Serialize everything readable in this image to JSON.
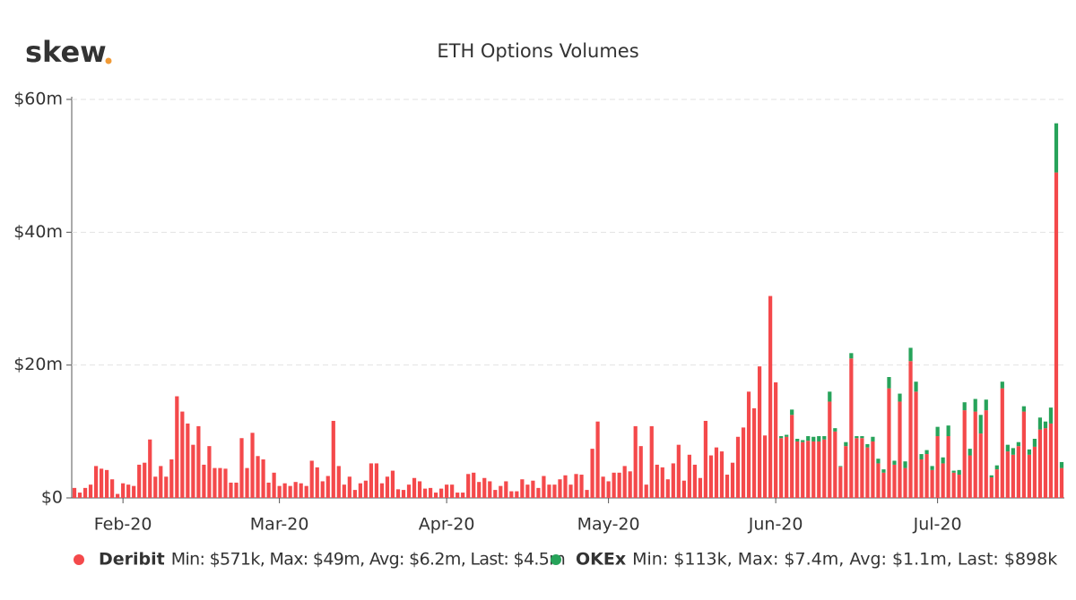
{
  "logo": "skew",
  "chart_data": {
    "type": "bar",
    "stacked": true,
    "title": "ETH Options Volumes",
    "categories": [
      null,
      null,
      null,
      null,
      null,
      null,
      null,
      null,
      null,
      "Feb-20",
      null,
      null,
      null,
      null,
      null,
      null,
      null,
      null,
      null,
      null,
      null,
      null,
      null,
      null,
      null,
      null,
      null,
      null,
      null,
      null,
      null,
      null,
      null,
      null,
      null,
      null,
      null,
      null,
      "Mar-20",
      null,
      null,
      null,
      null,
      null,
      null,
      null,
      null,
      null,
      null,
      null,
      null,
      null,
      null,
      null,
      null,
      null,
      null,
      null,
      null,
      null,
      null,
      null,
      null,
      null,
      null,
      null,
      null,
      null,
      null,
      "Apr-20",
      null,
      null,
      null,
      null,
      null,
      null,
      null,
      null,
      null,
      null,
      null,
      null,
      null,
      null,
      null,
      null,
      null,
      null,
      null,
      null,
      null,
      null,
      null,
      null,
      null,
      null,
      null,
      null,
      null,
      "May-20",
      null,
      null,
      null,
      null,
      null,
      null,
      null,
      null,
      null,
      null,
      null,
      null,
      null,
      null,
      null,
      null,
      null,
      null,
      null,
      null,
      null,
      null,
      null,
      null,
      null,
      null,
      null,
      null,
      null,
      null,
      "Jun-20",
      null,
      null,
      null,
      null,
      null,
      null,
      null,
      null,
      null,
      null,
      null,
      null,
      null,
      null,
      null,
      null,
      null,
      null,
      null,
      null,
      null,
      null,
      null,
      null,
      null,
      null,
      null,
      null,
      null,
      "Jul-20",
      null,
      null,
      null,
      null,
      null,
      null,
      null,
      null,
      null,
      null,
      null,
      null,
      null,
      null,
      null,
      null,
      null,
      null,
      null,
      null,
      null,
      null,
      null
    ],
    "series": [
      {
        "name": "Deribit",
        "color": "#f4494b",
        "legend_text": "Min: $571k, Max: $49m, Avg: $6.2m, Last: $4.5m",
        "values": [
          1.5,
          0.8,
          1.5,
          2,
          4.8,
          4.4,
          4.2,
          2.8,
          0.6,
          2.2,
          2.0,
          1.8,
          5.0,
          5.3,
          8.8,
          3.2,
          4.8,
          3.2,
          5.8,
          15.3,
          13,
          11.2,
          8,
          10.8,
          5,
          7.8,
          4.5,
          4.5,
          4.4,
          2.3,
          2.3,
          9,
          4.5,
          9.8,
          6.3,
          5.8,
          2.3,
          3.8,
          1.8,
          2.2,
          1.8,
          2.4,
          2.2,
          1.8,
          5.6,
          4.6,
          2.5,
          3.3,
          11.6,
          4.8,
          2.0,
          3.2,
          1.2,
          2.2,
          2.6,
          5.2,
          5.2,
          2.2,
          3.2,
          4.1,
          1.3,
          1.2,
          2.0,
          3.0,
          2.5,
          1.4,
          1.5,
          0.8,
          1.4,
          2.0,
          2.0,
          0.8,
          0.8,
          3.6,
          3.8,
          2.4,
          3.0,
          2.5,
          1.2,
          1.8,
          2.5,
          1.0,
          1.0,
          2.8,
          2.0,
          2.6,
          1.5,
          3.3,
          2.0,
          2.0,
          2.8,
          3.4,
          2.0,
          3.6,
          3.5,
          1.2,
          7.4,
          11.5,
          3.2,
          2.5,
          3.8,
          3.8,
          4.8,
          4.0,
          10.8,
          7.8,
          2.0,
          10.8,
          5.0,
          4.6,
          2.8,
          5.2,
          8.0,
          2.6,
          6.5,
          5.0,
          3.0,
          11.6,
          6.4,
          7.6,
          7.0,
          3.5,
          5.3,
          9.2,
          10.6,
          16,
          13.5,
          19.8,
          9.4,
          30.4,
          17.4,
          9.0,
          9.2,
          12.5,
          8.5,
          8.4,
          8.6,
          8.5,
          8.5,
          8.8,
          14.5,
          10,
          4.7,
          7.8,
          21,
          9,
          9,
          7.6,
          8.5,
          5.2,
          3.8,
          16.5,
          5,
          14.5,
          4.5,
          20.6,
          16,
          5.8,
          6.6,
          4.2,
          9.3,
          5.2,
          9.3,
          3.8,
          3.5,
          13.2,
          6.4,
          13.0,
          9.7,
          13.2,
          3.1,
          4.3,
          16.5,
          7,
          6.5,
          7.8,
          13,
          6.5,
          7.7,
          10.3,
          10.5,
          11.2,
          49,
          4.5
        ]
      },
      {
        "name": "OKEx",
        "color": "#27a35a",
        "legend_text": "Min: $113k, Max: $7.4m, Avg: $1.1m, Last: $898k",
        "values": [
          null,
          null,
          null,
          null,
          null,
          null,
          null,
          null,
          null,
          null,
          null,
          null,
          null,
          null,
          null,
          null,
          null,
          null,
          null,
          null,
          null,
          null,
          null,
          null,
          null,
          null,
          null,
          null,
          null,
          null,
          null,
          null,
          null,
          null,
          null,
          null,
          null,
          null,
          null,
          null,
          null,
          null,
          null,
          null,
          null,
          null,
          null,
          null,
          null,
          null,
          null,
          null,
          null,
          null,
          null,
          null,
          null,
          null,
          null,
          null,
          null,
          null,
          null,
          null,
          null,
          null,
          null,
          null,
          null,
          null,
          null,
          null,
          null,
          null,
          null,
          null,
          null,
          null,
          null,
          null,
          null,
          null,
          null,
          null,
          null,
          null,
          null,
          null,
          null,
          null,
          null,
          null,
          null,
          null,
          null,
          null,
          null,
          null,
          null,
          null,
          null,
          null,
          null,
          null,
          null,
          null,
          null,
          null,
          null,
          null,
          null,
          null,
          null,
          null,
          null,
          null,
          null,
          null,
          null,
          null,
          null,
          null,
          null,
          null,
          null,
          null,
          null,
          null,
          null,
          null,
          null,
          0.3,
          0.3,
          0.8,
          0.4,
          0.3,
          0.7,
          0.7,
          0.8,
          0.5,
          1.5,
          0.5,
          0.1,
          0.6,
          0.8,
          0.3,
          0.3,
          0.5,
          0.7,
          0.7,
          0.5,
          1.7,
          0.6,
          1.2,
          1.0,
          2.0,
          1.5,
          0.8,
          0.6,
          0.6,
          1.4,
          0.9,
          1.6,
          0.3,
          0.7,
          1.2,
          1.0,
          1.9,
          2.8,
          1.6,
          0.3,
          0.6,
          1.0,
          1.0,
          1.0,
          0.6,
          0.8,
          0.8,
          1.2,
          1.8,
          1.0,
          2.4,
          7.4,
          0.9
        ]
      }
    ],
    "ylim": [
      0,
      60
    ],
    "yticks": [
      {
        "value": 0,
        "label": "$0"
      },
      {
        "value": 20,
        "label": "$20m"
      },
      {
        "value": 40,
        "label": "$40m"
      },
      {
        "value": 60,
        "label": "$60m"
      }
    ],
    "grid": true
  }
}
